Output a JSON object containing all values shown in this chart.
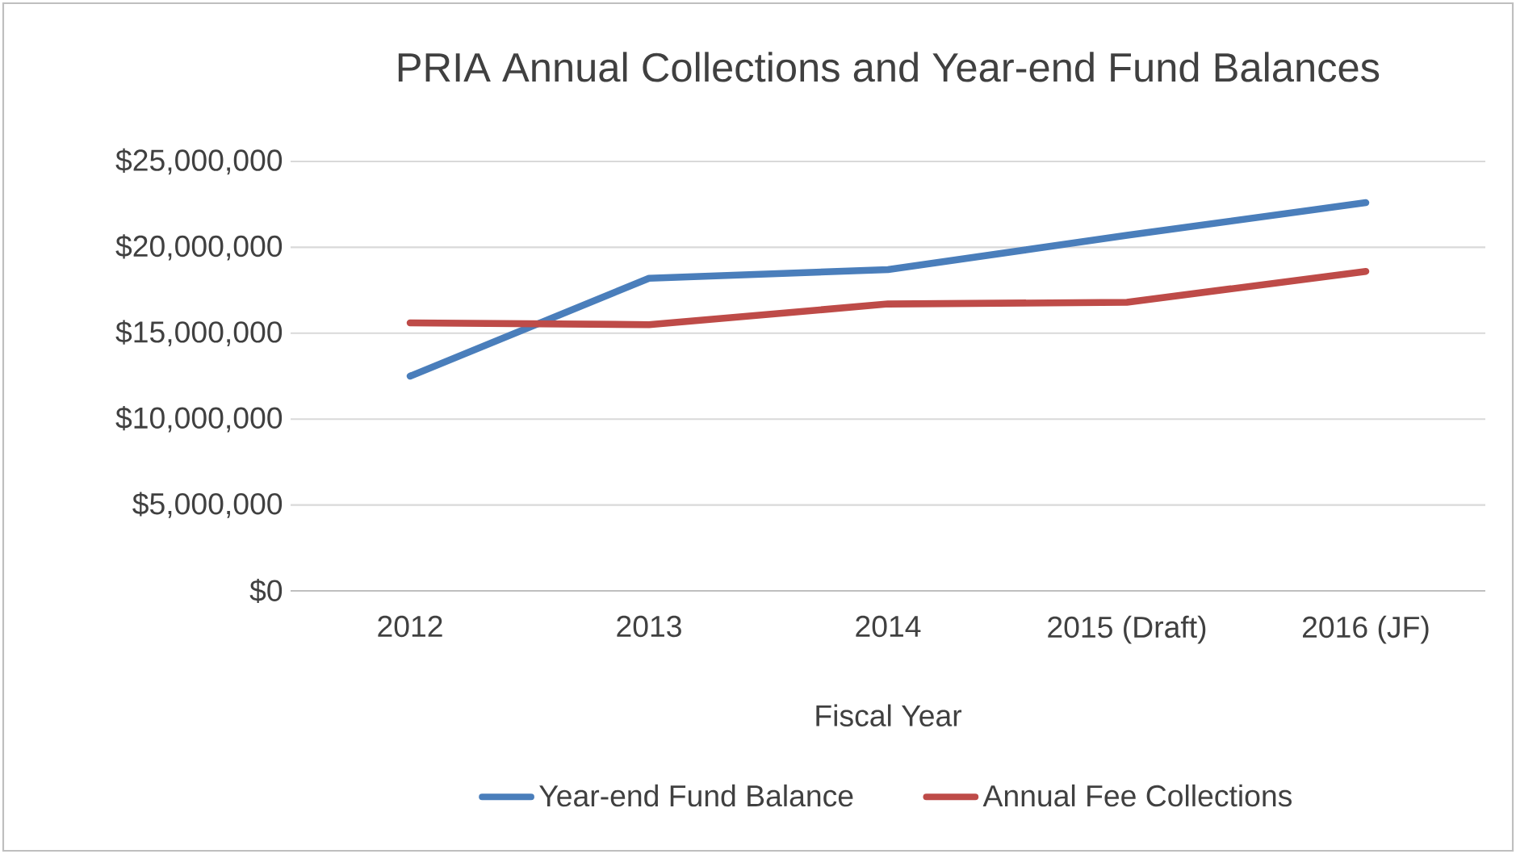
{
  "chart_data": {
    "type": "line",
    "title": "PRIA Annual Collections and Year-end Fund Balances",
    "xlabel": "Fiscal Year",
    "categories": [
      "2012",
      "2013",
      "2014",
      "2015 (Draft)",
      "2016 (JF)"
    ],
    "series": [
      {
        "name": "Year-end Fund Balance",
        "color": "#4a7ebb",
        "values": [
          12500000,
          18200000,
          18700000,
          20700000,
          22600000
        ]
      },
      {
        "name": "Annual Fee Collections",
        "color": "#be4b48",
        "values": [
          15600000,
          15500000,
          16700000,
          16800000,
          18600000
        ]
      }
    ],
    "ylim": [
      0,
      25000000
    ],
    "yticks": [
      {
        "value": 0,
        "label": "$0"
      },
      {
        "value": 5000000,
        "label": "$5,000,000"
      },
      {
        "value": 10000000,
        "label": "$10,000,000"
      },
      {
        "value": 15000000,
        "label": "$15,000,000"
      },
      {
        "value": 20000000,
        "label": "$20,000,000"
      },
      {
        "value": 25000000,
        "label": "$25,000,000"
      }
    ],
    "grid": "y",
    "legend": "bottom",
    "marker": "none",
    "line_style": "solid"
  }
}
